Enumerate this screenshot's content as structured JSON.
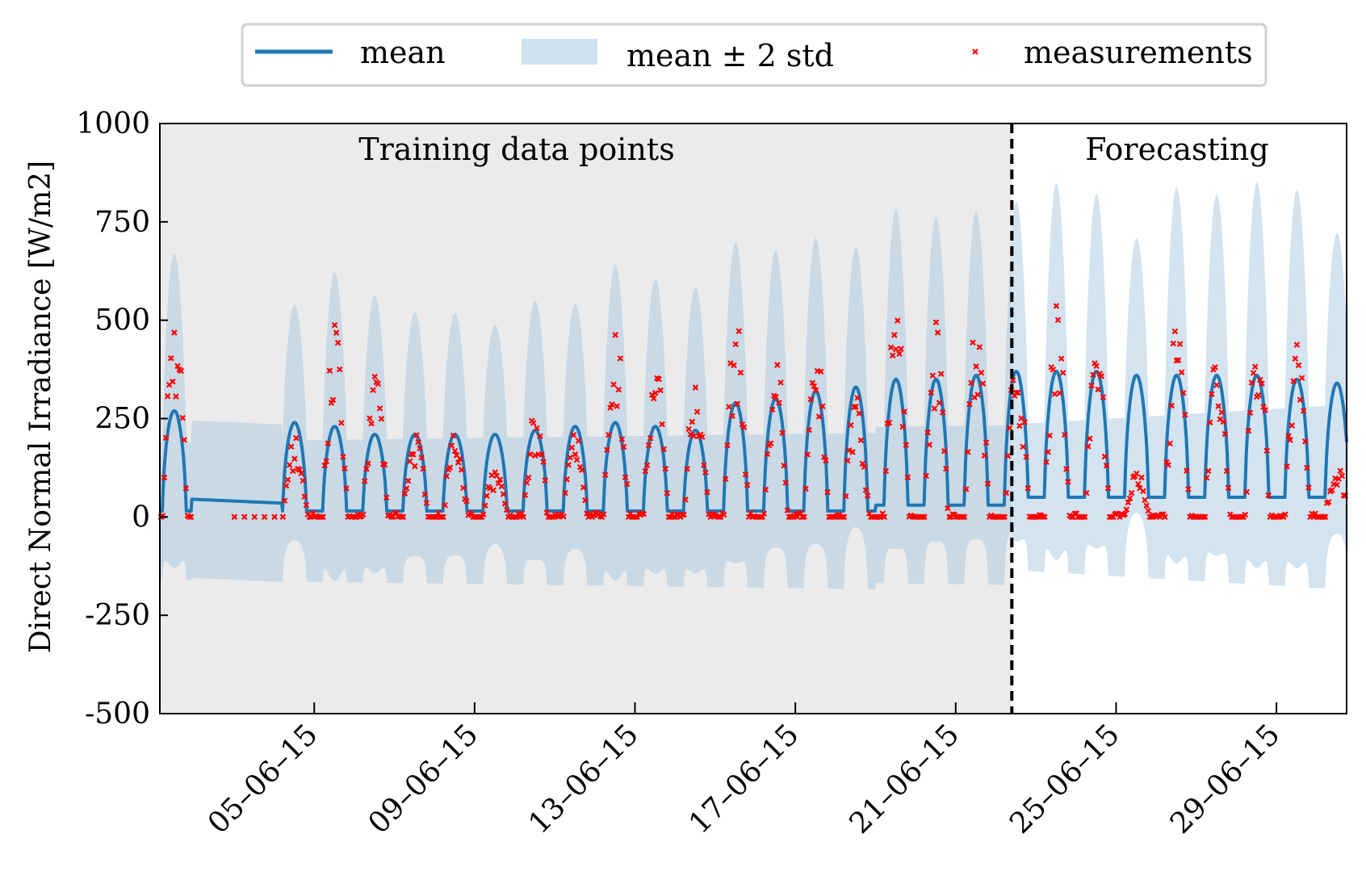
{
  "chart_data": {
    "type": "line",
    "ylabel": "Direct Normal Irradiance [W/m2]",
    "xlabel": "",
    "ylim": [
      -500,
      1000
    ],
    "xlim_days": [
      1.15,
      30.75
    ],
    "x_tick_labels": [
      "05–06–15",
      "09–06–15",
      "13–06–15",
      "17–06–15",
      "21–06–15",
      "25–06–15",
      "29–06–15"
    ],
    "x_tick_days": [
      5,
      9,
      13,
      17,
      21,
      25,
      29
    ],
    "y_ticks": [
      -500,
      -250,
      0,
      250,
      500,
      750,
      1000
    ],
    "y_tick_labels": [
      "-500",
      "-250",
      "0",
      "250",
      "500",
      "750",
      "1000"
    ],
    "split_day": 22.4,
    "regions": {
      "training_label": "Training data points",
      "forecast_label": "Forecasting"
    },
    "legend": {
      "placement": "top-center, above plot",
      "mean": "mean",
      "band": "mean ± 2 std",
      "measurements": "measurements"
    },
    "colors": {
      "mean": "#1f77b4",
      "band": "#a8c8e1",
      "training_bg": "#ebebeb",
      "measurements": "#ff0000",
      "split_line": "#000000"
    },
    "daily_peaks": [
      {
        "day": 1.5,
        "mean_peak": 270,
        "meas_peak": 540
      },
      {
        "day": 3.5,
        "mean_peak": 0,
        "meas_peak": 0
      },
      {
        "day": 4.5,
        "mean_peak": 240,
        "meas_peak": 210
      },
      {
        "day": 5.5,
        "mean_peak": 230,
        "meas_peak": 500
      },
      {
        "day": 6.5,
        "mean_peak": 210,
        "meas_peak": 370
      },
      {
        "day": 7.5,
        "mean_peak": 210,
        "meas_peak": 230
      },
      {
        "day": 8.5,
        "mean_peak": 210,
        "meas_peak": 220
      },
      {
        "day": 9.5,
        "mean_peak": 210,
        "meas_peak": 120
      },
      {
        "day": 10.5,
        "mean_peak": 220,
        "meas_peak": 280
      },
      {
        "day": 11.5,
        "mean_peak": 230,
        "meas_peak": 220
      },
      {
        "day": 12.5,
        "mean_peak": 240,
        "meas_peak": 500
      },
      {
        "day": 13.5,
        "mean_peak": 230,
        "meas_peak": 410
      },
      {
        "day": 14.5,
        "mean_peak": 220,
        "meas_peak": 370
      },
      {
        "day": 15.5,
        "mean_peak": 290,
        "meas_peak": 510
      },
      {
        "day": 16.5,
        "mean_peak": 300,
        "meas_peak": 410
      },
      {
        "day": 17.5,
        "mean_peak": 320,
        "meas_peak": 440
      },
      {
        "day": 18.5,
        "mean_peak": 330,
        "meas_peak": 330
      },
      {
        "day": 19.5,
        "mean_peak": 350,
        "meas_peak": 570
      },
      {
        "day": 20.5,
        "mean_peak": 350,
        "meas_peak": 500
      },
      {
        "day": 21.5,
        "mean_peak": 360,
        "meas_peak": 510
      },
      {
        "day": 22.5,
        "mean_peak": 370,
        "meas_peak": 440
      },
      {
        "day": 23.5,
        "mean_peak": 370,
        "meas_peak": 570
      },
      {
        "day": 24.5,
        "mean_peak": 370,
        "meas_peak": 460
      },
      {
        "day": 25.5,
        "mean_peak": 360,
        "meas_peak": 120
      },
      {
        "day": 26.5,
        "mean_peak": 360,
        "meas_peak": 510
      },
      {
        "day": 27.5,
        "mean_peak": 360,
        "meas_peak": 430
      },
      {
        "day": 28.5,
        "mean_peak": 360,
        "meas_peak": 510
      },
      {
        "day": 29.5,
        "mean_peak": 350,
        "meas_peak": 460
      },
      {
        "day": 30.5,
        "mean_peak": 340,
        "meas_peak": 130
      }
    ]
  }
}
